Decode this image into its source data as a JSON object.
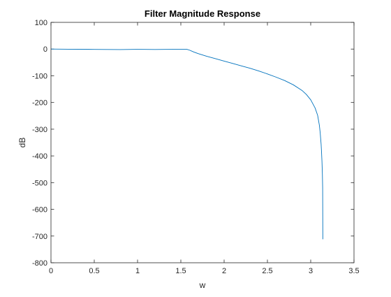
{
  "chart_data": {
    "type": "line",
    "title": "Filter Magnitude Response",
    "xlabel": "w",
    "ylabel": "dB",
    "xlim": [
      0,
      3.5
    ],
    "ylim": [
      -800,
      100
    ],
    "xticks": [
      0,
      0.5,
      1,
      1.5,
      2,
      2.5,
      3,
      3.5
    ],
    "xtick_labels": [
      "0",
      "0.5",
      "1",
      "1.5",
      "2",
      "2.5",
      "3",
      "3.5"
    ],
    "yticks": [
      100,
      0,
      -100,
      -200,
      -300,
      -400,
      -500,
      -600,
      -700,
      -800
    ],
    "ytick_labels": [
      "100",
      "0",
      "-100",
      "-200",
      "-300",
      "-400",
      "-500",
      "-600",
      "-700",
      "-800"
    ],
    "grid": false,
    "box": true,
    "line_color": "#0072BD",
    "series": [
      {
        "x": [
          0,
          0.2,
          0.5,
          0.8,
          1.0,
          1.2,
          1.4,
          1.5,
          1.57,
          1.6,
          1.65,
          1.7,
          1.8,
          1.9,
          2.0,
          2.1,
          2.2,
          2.3,
          2.4,
          2.5,
          2.6,
          2.7,
          2.8,
          2.9,
          2.95,
          3.0,
          3.05,
          3.08,
          3.1,
          3.11,
          3.12,
          3.125,
          3.13,
          3.135,
          3.138,
          3.14
        ],
        "y": [
          0,
          -0.5,
          -1.2,
          -1.8,
          -1.0,
          -1.5,
          -0.8,
          -0.5,
          -1.0,
          -4,
          -11,
          -17,
          -27,
          -36,
          -45,
          -54,
          -63,
          -72,
          -82,
          -93,
          -105,
          -118,
          -134,
          -155,
          -170,
          -190,
          -220,
          -248,
          -285,
          -315,
          -355,
          -385,
          -420,
          -470,
          -520,
          -712
        ]
      }
    ]
  }
}
